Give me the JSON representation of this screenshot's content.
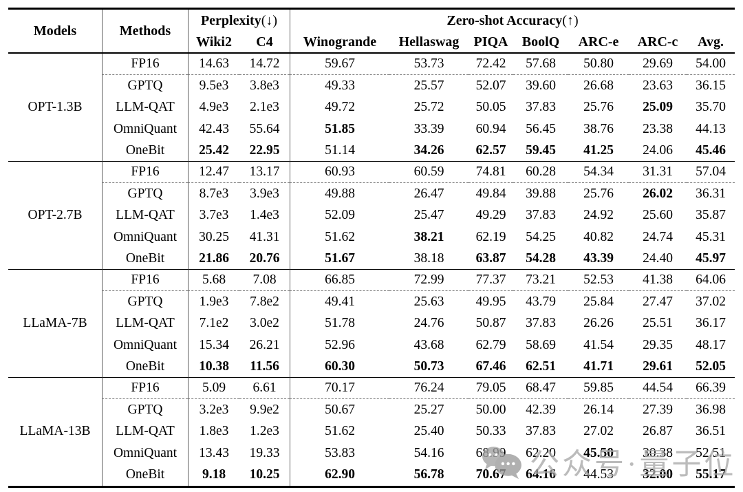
{
  "header": {
    "models": "Models",
    "methods": "Methods",
    "perplexity_label": "Perplexity",
    "perplexity_arrow": "(↓)",
    "perplexity_cols": [
      "Wiki2",
      "C4"
    ],
    "zeroshot_label": "Zero-shot Accuracy",
    "zeroshot_arrow": "(↑)",
    "zeroshot_cols": [
      "Winogrande",
      "Hellaswag",
      "PIQA",
      "BoolQ",
      "ARC-e",
      "ARC-c",
      "Avg."
    ]
  },
  "groups": [
    {
      "model": "OPT-1.3B",
      "rows": [
        {
          "method": "FP16",
          "values": [
            "14.63",
            "14.72",
            "59.67",
            "53.73",
            "72.42",
            "57.68",
            "50.80",
            "29.69",
            "54.00"
          ],
          "bold": [
            0,
            0,
            0,
            0,
            0,
            0,
            0,
            0,
            0
          ]
        },
        {
          "method": "GPTQ",
          "values": [
            "9.5e3",
            "3.8e3",
            "49.33",
            "25.57",
            "52.07",
            "39.60",
            "26.68",
            "23.63",
            "36.15"
          ],
          "bold": [
            0,
            0,
            0,
            0,
            0,
            0,
            0,
            0,
            0
          ]
        },
        {
          "method": "LLM-QAT",
          "values": [
            "4.9e3",
            "2.1e3",
            "49.72",
            "25.72",
            "50.05",
            "37.83",
            "25.76",
            "25.09",
            "35.70"
          ],
          "bold": [
            0,
            0,
            0,
            0,
            0,
            0,
            0,
            1,
            0
          ]
        },
        {
          "method": "OmniQuant",
          "values": [
            "42.43",
            "55.64",
            "51.85",
            "33.39",
            "60.94",
            "56.45",
            "38.76",
            "23.38",
            "44.13"
          ],
          "bold": [
            0,
            0,
            1,
            0,
            0,
            0,
            0,
            0,
            0
          ]
        },
        {
          "method": "OneBit",
          "values": [
            "25.42",
            "22.95",
            "51.14",
            "34.26",
            "62.57",
            "59.45",
            "41.25",
            "24.06",
            "45.46"
          ],
          "bold": [
            1,
            1,
            0,
            1,
            1,
            1,
            1,
            0,
            1
          ]
        }
      ]
    },
    {
      "model": "OPT-2.7B",
      "rows": [
        {
          "method": "FP16",
          "values": [
            "12.47",
            "13.17",
            "60.93",
            "60.59",
            "74.81",
            "60.28",
            "54.34",
            "31.31",
            "57.04"
          ],
          "bold": [
            0,
            0,
            0,
            0,
            0,
            0,
            0,
            0,
            0
          ]
        },
        {
          "method": "GPTQ",
          "values": [
            "8.7e3",
            "3.9e3",
            "49.88",
            "26.47",
            "49.84",
            "39.88",
            "25.76",
            "26.02",
            "36.31"
          ],
          "bold": [
            0,
            0,
            0,
            0,
            0,
            0,
            0,
            1,
            0
          ]
        },
        {
          "method": "LLM-QAT",
          "values": [
            "3.7e3",
            "1.4e3",
            "52.09",
            "25.47",
            "49.29",
            "37.83",
            "24.92",
            "25.60",
            "35.87"
          ],
          "bold": [
            0,
            0,
            0,
            0,
            0,
            0,
            0,
            0,
            0
          ]
        },
        {
          "method": "OmniQuant",
          "values": [
            "30.25",
            "41.31",
            "51.62",
            "38.21",
            "62.19",
            "54.25",
            "40.82",
            "24.74",
            "45.31"
          ],
          "bold": [
            0,
            0,
            0,
            1,
            0,
            0,
            0,
            0,
            0
          ]
        },
        {
          "method": "OneBit",
          "values": [
            "21.86",
            "20.76",
            "51.67",
            "38.18",
            "63.87",
            "54.28",
            "43.39",
            "24.40",
            "45.97"
          ],
          "bold": [
            1,
            1,
            1,
            0,
            1,
            1,
            1,
            0,
            1
          ]
        }
      ]
    },
    {
      "model": "LLaMA-7B",
      "rows": [
        {
          "method": "FP16",
          "values": [
            "5.68",
            "7.08",
            "66.85",
            "72.99",
            "77.37",
            "73.21",
            "52.53",
            "41.38",
            "64.06"
          ],
          "bold": [
            0,
            0,
            0,
            0,
            0,
            0,
            0,
            0,
            0
          ]
        },
        {
          "method": "GPTQ",
          "values": [
            "1.9e3",
            "7.8e2",
            "49.41",
            "25.63",
            "49.95",
            "43.79",
            "25.84",
            "27.47",
            "37.02"
          ],
          "bold": [
            0,
            0,
            0,
            0,
            0,
            0,
            0,
            0,
            0
          ]
        },
        {
          "method": "LLM-QAT",
          "values": [
            "7.1e2",
            "3.0e2",
            "51.78",
            "24.76",
            "50.87",
            "37.83",
            "26.26",
            "25.51",
            "36.17"
          ],
          "bold": [
            0,
            0,
            0,
            0,
            0,
            0,
            0,
            0,
            0
          ]
        },
        {
          "method": "OmniQuant",
          "values": [
            "15.34",
            "26.21",
            "52.96",
            "43.68",
            "62.79",
            "58.69",
            "41.54",
            "29.35",
            "48.17"
          ],
          "bold": [
            0,
            0,
            0,
            0,
            0,
            0,
            0,
            0,
            0
          ]
        },
        {
          "method": "OneBit",
          "values": [
            "10.38",
            "11.56",
            "60.30",
            "50.73",
            "67.46",
            "62.51",
            "41.71",
            "29.61",
            "52.05"
          ],
          "bold": [
            1,
            1,
            1,
            1,
            1,
            1,
            1,
            1,
            1
          ]
        }
      ]
    },
    {
      "model": "LLaMA-13B",
      "rows": [
        {
          "method": "FP16",
          "values": [
            "5.09",
            "6.61",
            "70.17",
            "76.24",
            "79.05",
            "68.47",
            "59.85",
            "44.54",
            "66.39"
          ],
          "bold": [
            0,
            0,
            0,
            0,
            0,
            0,
            0,
            0,
            0
          ]
        },
        {
          "method": "GPTQ",
          "values": [
            "3.2e3",
            "9.9e2",
            "50.67",
            "25.27",
            "50.00",
            "42.39",
            "26.14",
            "27.39",
            "36.98"
          ],
          "bold": [
            0,
            0,
            0,
            0,
            0,
            0,
            0,
            0,
            0
          ]
        },
        {
          "method": "LLM-QAT",
          "values": [
            "1.8e3",
            "1.2e3",
            "51.62",
            "25.40",
            "50.33",
            "37.83",
            "27.02",
            "26.87",
            "36.51"
          ],
          "bold": [
            0,
            0,
            0,
            0,
            0,
            0,
            0,
            0,
            0
          ]
        },
        {
          "method": "OmniQuant",
          "values": [
            "13.43",
            "19.33",
            "53.83",
            "54.16",
            "68.99",
            "62.20",
            "45.50",
            "30.38",
            "52.51"
          ],
          "bold": [
            0,
            0,
            0,
            0,
            0,
            0,
            1,
            0,
            0
          ]
        },
        {
          "method": "OneBit",
          "values": [
            "9.18",
            "10.25",
            "62.90",
            "56.78",
            "70.67",
            "64.16",
            "44.53",
            "32.00",
            "55.17"
          ],
          "bold": [
            1,
            1,
            1,
            1,
            1,
            1,
            0,
            1,
            1
          ]
        }
      ]
    }
  ],
  "watermark": {
    "text": "公众号·量子位",
    "icon": "chat-bubbles-icon",
    "color": "#a9a9a9"
  },
  "colors": {
    "text": "#000000",
    "background": "#ffffff",
    "border": "#000000",
    "dashed_rule": "#7f7f7f",
    "vertical_rule": "#5e5e5e"
  }
}
